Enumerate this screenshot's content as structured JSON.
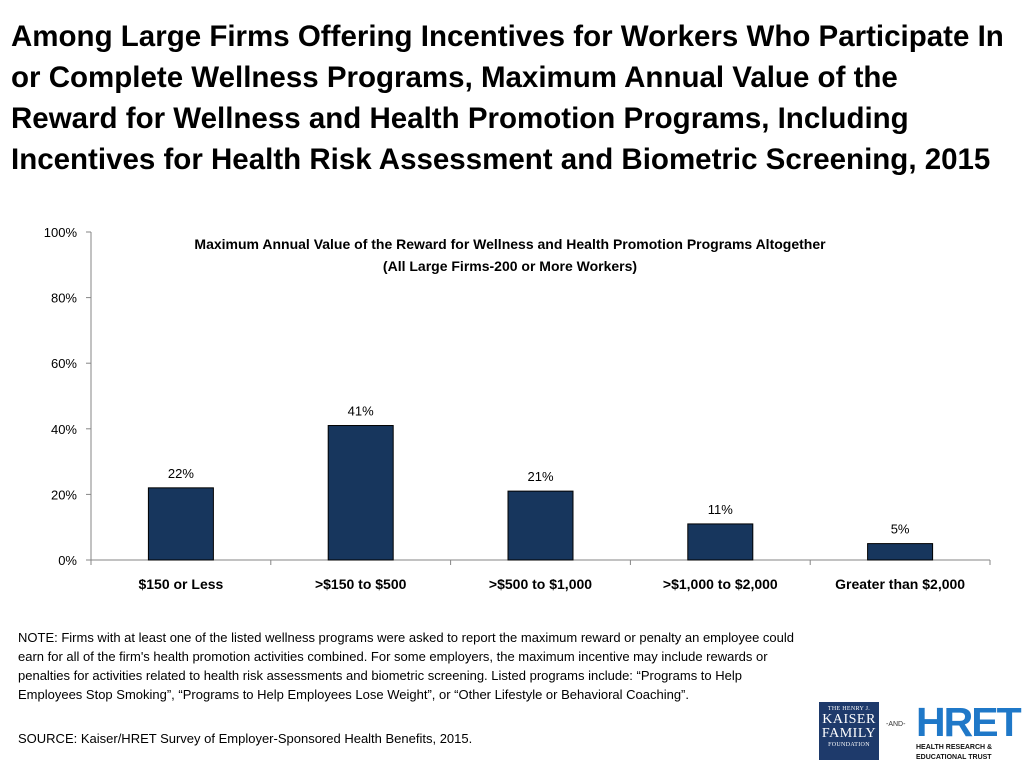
{
  "page": {
    "title": "Among Large Firms Offering Incentives for Workers Who Participate In or Complete Wellness Programs, Maximum Annual Value of the Reward for Wellness and Health Promotion Programs, Including Incentives for Health Risk Assessment and Biometric Screening, 2015",
    "note": "NOTE: Firms with at least one of the listed wellness programs were asked to report the maximum reward or penalty an employee could earn for all of the firm's health promotion activities combined.  For some employers, the maximum incentive may include rewards or penalties for activities related to health risk assessments and biometric screening.  Listed programs include: “Programs to Help Employees Stop Smoking”, “Programs to Help Employees Lose Weight”, or “Other Lifestyle  or Behavioral Coaching”.",
    "source": "SOURCE: Kaiser/HRET Survey of Employer-Sponsored Health Benefits, 2015."
  },
  "logos": {
    "kff": {
      "line1": "THE HENRY J.",
      "line2": "KAISER",
      "line3": "FAMILY",
      "line4": "FOUNDATION",
      "color": "#1e3a6b"
    },
    "and_text": "-AND-",
    "hret": {
      "name": "HRET",
      "sub1": "HEALTH RESEARCH &",
      "sub2": "EDUCATIONAL TRUST",
      "color": "#1f78c8"
    }
  },
  "chart_data": {
    "type": "bar",
    "title_line1": "Maximum Annual Value of the Reward for Wellness and Health Promotion Programs Altogether",
    "title_line2": "(All Large Firms-200 or More Workers)",
    "categories": [
      "$150 or Less",
      ">$150 to $500",
      ">$500 to $1,000",
      ">$1,000 to $2,000",
      "Greater than $2,000"
    ],
    "values": [
      22,
      41,
      21,
      11,
      5
    ],
    "value_labels": [
      "22%",
      "41%",
      "21%",
      "11%",
      "5%"
    ],
    "yticks": [
      0,
      20,
      40,
      60,
      80,
      100
    ],
    "ytick_labels": [
      "0%",
      "20%",
      "40%",
      "60%",
      "80%",
      "100%"
    ],
    "ylim": [
      0,
      100
    ],
    "bar_color": "#17365d",
    "grid": false,
    "legend": "none"
  }
}
